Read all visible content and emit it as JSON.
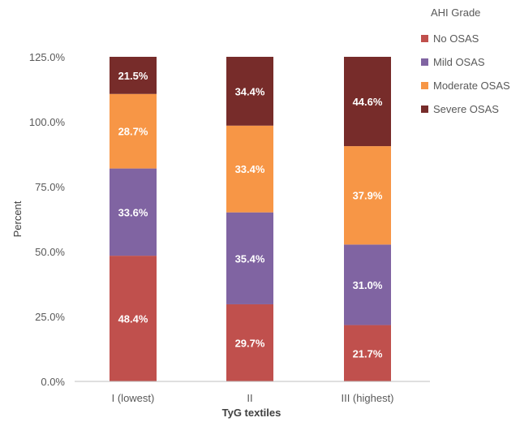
{
  "chart_data": {
    "type": "bar",
    "stacked": true,
    "categories": [
      "I (lowest)",
      "II",
      "III (highest)"
    ],
    "xlabel": "TyG textiles",
    "ylabel": "Percent",
    "ylim": [
      0,
      125
    ],
    "yticks": [
      "0.0%",
      "25.0%",
      "50.0%",
      "75.0%",
      "100.0%",
      "125.0%"
    ],
    "legend_title": "AHI Grade",
    "legend_position": "top-right",
    "grid": false,
    "series": [
      {
        "name": "No OSAS",
        "color": "#c0504d",
        "values": [
          48.4,
          29.7,
          21.7
        ],
        "labels": [
          "48.4%",
          "29.7%",
          "21.7%"
        ]
      },
      {
        "name": "Mild OSAS",
        "color": "#8064a2",
        "values": [
          33.6,
          35.4,
          31.0
        ],
        "labels": [
          "33.6%",
          "35.4%",
          "31.0%"
        ]
      },
      {
        "name": "Moderate OSAS",
        "color": "#f79646",
        "values": [
          28.7,
          33.4,
          37.9
        ],
        "labels": [
          "28.7%",
          "33.4%",
          "37.9%"
        ]
      },
      {
        "name": "Severe OSAS",
        "color": "#772c2a",
        "values": [
          21.5,
          34.4,
          44.6
        ],
        "labels": [
          "21.5%",
          "34.4%",
          "44.6%"
        ]
      }
    ]
  }
}
